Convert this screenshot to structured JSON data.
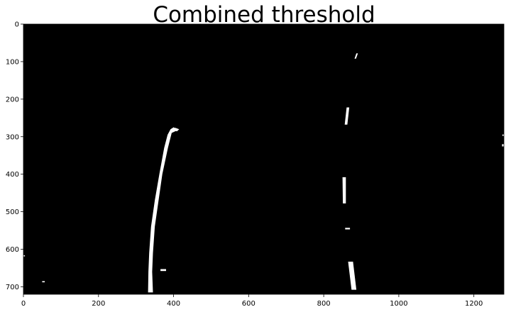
{
  "figure": {
    "title": "Combined threshold",
    "colors": {
      "background": "#000000",
      "foreground": "#ffffff",
      "figure_bg": "#ffffff"
    }
  },
  "chart_data": {
    "type": "heatmap",
    "title": "Combined threshold",
    "xlabel": "",
    "ylabel": "",
    "xlim": [
      0,
      1280
    ],
    "ylim": [
      720,
      0
    ],
    "x_ticks": [
      0,
      200,
      400,
      600,
      800,
      1000,
      1200
    ],
    "y_ticks": [
      0,
      100,
      200,
      300,
      400,
      500,
      600,
      700
    ],
    "grid": false,
    "image": "binary lane-line threshold mask",
    "regions": [
      {
        "name": "left-lane-line",
        "points": [
          [
            400,
            275
          ],
          [
            412,
            282
          ],
          [
            395,
            290
          ],
          [
            385,
            330
          ],
          [
            370,
            400
          ],
          [
            360,
            470
          ],
          [
            350,
            540
          ],
          [
            345,
            610
          ],
          [
            343,
            660
          ],
          [
            345,
            715
          ],
          [
            332,
            715
          ],
          [
            333,
            660
          ],
          [
            335,
            610
          ],
          [
            340,
            540
          ],
          [
            350,
            470
          ],
          [
            362,
            400
          ],
          [
            375,
            330
          ],
          [
            384,
            295
          ],
          [
            392,
            280
          ]
        ]
      },
      {
        "name": "left-lane-tip",
        "points": [
          [
            404,
            276
          ],
          [
            415,
            280
          ],
          [
            409,
            286
          ],
          [
            400,
            283
          ]
        ]
      },
      {
        "name": "right-dash-1",
        "points": [
          [
            887,
            78
          ],
          [
            891,
            78
          ],
          [
            886,
            92
          ],
          [
            882,
            92
          ]
        ]
      },
      {
        "name": "right-dash-2",
        "points": [
          [
            861,
            222
          ],
          [
            868,
            222
          ],
          [
            863,
            268
          ],
          [
            856,
            268
          ]
        ]
      },
      {
        "name": "right-dash-3",
        "points": [
          [
            850,
            408
          ],
          [
            859,
            408
          ],
          [
            859,
            478
          ],
          [
            851,
            478
          ]
        ]
      },
      {
        "name": "right-dash-4",
        "points": [
          [
            865,
            633
          ],
          [
            878,
            633
          ],
          [
            887,
            708
          ],
          [
            874,
            708
          ]
        ]
      },
      {
        "name": "right-mark-small",
        "points": [
          [
            857,
            543
          ],
          [
            870,
            543
          ],
          [
            870,
            547
          ],
          [
            857,
            547
          ]
        ]
      },
      {
        "name": "left-mark-small",
        "points": [
          [
            365,
            653
          ],
          [
            380,
            653
          ],
          [
            380,
            658
          ],
          [
            365,
            658
          ]
        ]
      },
      {
        "name": "far-left-mark",
        "points": [
          [
            50,
            685
          ],
          [
            57,
            685
          ],
          [
            57,
            688
          ],
          [
            50,
            688
          ]
        ]
      },
      {
        "name": "edge-left-mark",
        "points": [
          [
            0,
            616
          ],
          [
            4,
            616
          ],
          [
            4,
            619
          ],
          [
            0,
            619
          ]
        ]
      },
      {
        "name": "edge-right-mark",
        "points": [
          [
            1276,
            294
          ],
          [
            1280,
            294
          ],
          [
            1280,
            298
          ],
          [
            1276,
            298
          ]
        ]
      },
      {
        "name": "edge-right-mark-2",
        "points": [
          [
            1275,
            320
          ],
          [
            1280,
            320
          ],
          [
            1280,
            326
          ],
          [
            1275,
            326
          ]
        ]
      }
    ]
  }
}
